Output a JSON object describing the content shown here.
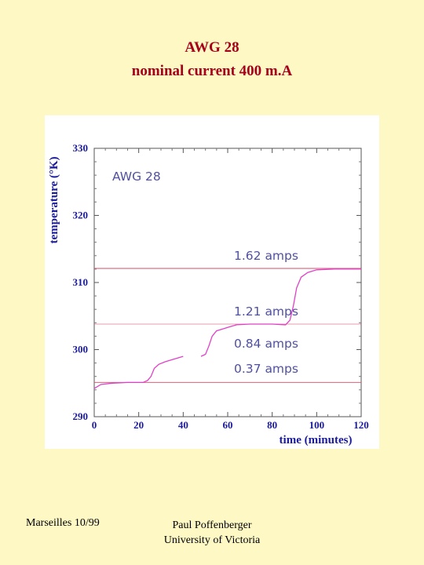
{
  "slide": {
    "title": "AWG 28",
    "subtitle": "nominal current 400 m.A",
    "footer_left": "Marseilles 10/99",
    "footer_right_line1": "Paul Poffenberger",
    "footer_right_line2": "University of Victoria"
  },
  "colors": {
    "background": "#fdf8c4",
    "title": "#a6001b",
    "axis_label": "#1a1a9c",
    "trace": "#e040c8",
    "reference_line": "#d8506a",
    "annotation": "#5050a0"
  },
  "chart_data": {
    "type": "line",
    "title": "",
    "inset_label": "AWG 28",
    "xlabel": "time (minutes)",
    "ylabel": "temperature (°K)",
    "xlim": [
      0,
      120
    ],
    "ylim": [
      290,
      330
    ],
    "xticks": [
      0,
      20,
      40,
      60,
      80,
      100,
      120
    ],
    "yticks": [
      290,
      300,
      310,
      320,
      330
    ],
    "grid": false,
    "series": [
      {
        "segments": [
          [
            [
              0,
              294.2
            ],
            [
              3,
              294.8
            ],
            [
              8,
              295.0
            ],
            [
              15,
              295.1
            ],
            [
              22,
              295.1
            ],
            [
              24,
              295.4
            ],
            [
              25.5,
              296.0
            ],
            [
              27,
              297.2
            ],
            [
              29,
              297.8
            ],
            [
              32,
              298.2
            ],
            [
              36,
              298.6
            ],
            [
              40,
              299.0
            ]
          ],
          [
            [
              48,
              299.0
            ],
            [
              50,
              299.3
            ],
            [
              51.5,
              300.5
            ],
            [
              53,
              302.0
            ],
            [
              55,
              302.8
            ],
            [
              58,
              303.1
            ],
            [
              61,
              303.4
            ],
            [
              64,
              303.7
            ],
            [
              70,
              303.8
            ],
            [
              80,
              303.8
            ],
            [
              86,
              303.7
            ],
            [
              88,
              304.4
            ],
            [
              89.5,
              306.5
            ],
            [
              91,
              309.2
            ],
            [
              93,
              310.8
            ],
            [
              96,
              311.5
            ],
            [
              100,
              311.9
            ],
            [
              108,
              312.0
            ],
            [
              120,
              312.0
            ]
          ]
        ]
      }
    ],
    "reference_lines": [
      {
        "label": "1.62 amps",
        "y": 312.1
      },
      {
        "label": "1.21 amps",
        "y": 303.8
      },
      {
        "label": "0.84 amps",
        "y": 303.8
      },
      {
        "label": "0.37 amps",
        "y": 295.1
      }
    ]
  }
}
